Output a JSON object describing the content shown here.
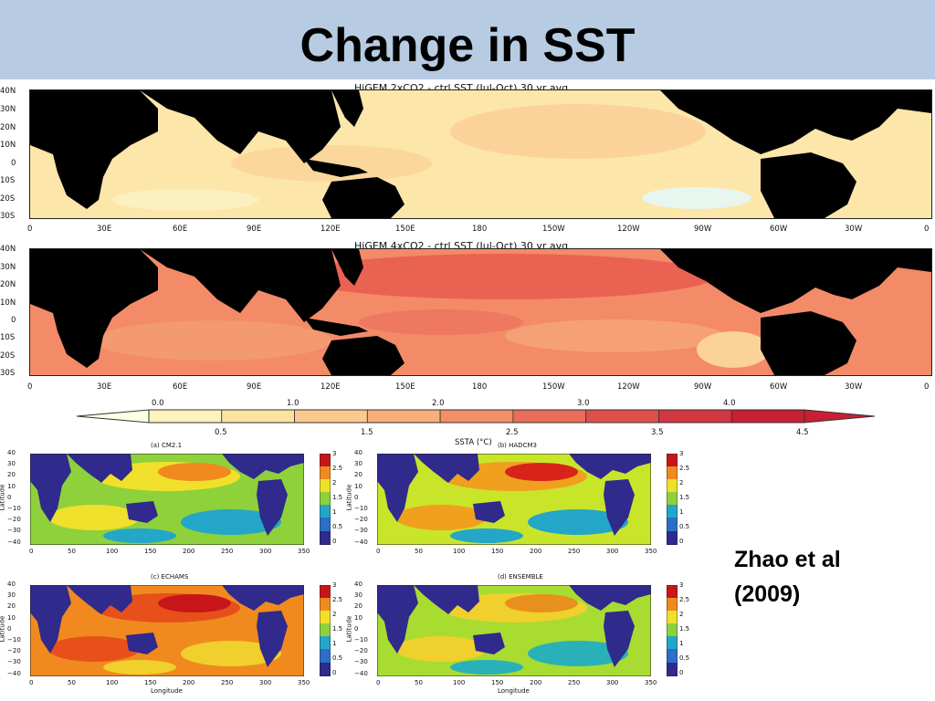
{
  "slide": {
    "title": "Change in SST",
    "citation_line1": "Zhao et al",
    "citation_line2": "(2009)"
  },
  "maps": [
    {
      "title": "HiGEM 2xCO2 - ctrl SST (Jul-Oct) 30 yr avg",
      "base_color": "#fde6aa"
    },
    {
      "title": "HiGEM 4xCO2 - ctrl SST (Jul-Oct) 30 yr avg",
      "base_color": "#f07a5e"
    }
  ],
  "lat_ticks": [
    "40N",
    "30N",
    "20N",
    "10N",
    "0",
    "10S",
    "20S",
    "30S"
  ],
  "lon_ticks": [
    "0",
    "30E",
    "60E",
    "90E",
    "120E",
    "150E",
    "180",
    "150W",
    "120W",
    "90W",
    "60W",
    "30W",
    "0"
  ],
  "colorbar": {
    "label": "SSTA (°C)",
    "top_ticks": [
      "0.0",
      "1.0",
      "2.0",
      "3.0",
      "4.0"
    ],
    "bottom_ticks": [
      "0.5",
      "1.5",
      "2.5",
      "3.5",
      "4.5"
    ],
    "colors": [
      "#ffffe6",
      "#fdf3bd",
      "#fde3a2",
      "#fbc98b",
      "#f8ae78",
      "#f28f67",
      "#ea6e59",
      "#de4f4c",
      "#d23640",
      "#c81f33"
    ]
  },
  "small_panels": [
    {
      "title": "(a) CM2.1"
    },
    {
      "title": "(b) HADCM3"
    },
    {
      "title": "(c) ECHAMS"
    },
    {
      "title": "(d) ENSEMBLE"
    }
  ],
  "small_axis": {
    "lat_ticks": [
      "40",
      "30",
      "20",
      "10",
      "0",
      "−10",
      "−20",
      "−30",
      "−40"
    ],
    "lon_ticks": [
      "0",
      "50",
      "100",
      "150",
      "200",
      "250",
      "300",
      "350"
    ],
    "ylabel": "Latitude",
    "xlabel": "Longitude",
    "cb_ticks": [
      "3",
      "2.5",
      "2",
      "1.5",
      "1",
      "0.5",
      "0"
    ]
  }
}
